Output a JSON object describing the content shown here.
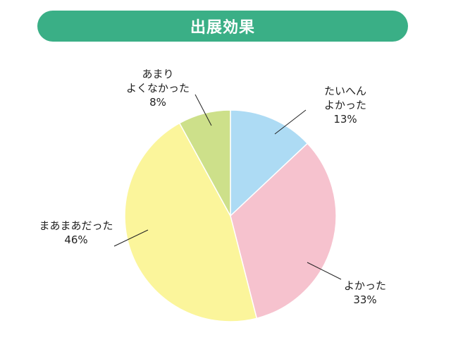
{
  "title": "出展効果",
  "colors": {
    "title_bg": "#3aaf86",
    "leader": "#222222"
  },
  "chart_data": {
    "type": "pie",
    "title": "出展効果",
    "slices": [
      {
        "label_lines": [
          "たいへん",
          "よかった"
        ],
        "percent_label": "13%",
        "value": 13,
        "color": "#addbf4"
      },
      {
        "label_lines": [
          "よかった"
        ],
        "percent_label": "33%",
        "value": 33,
        "color": "#f6c2ce"
      },
      {
        "label_lines": [
          "まあまあだった"
        ],
        "percent_label": "46%",
        "value": 46,
        "color": "#fbf59b"
      },
      {
        "label_lines": [
          "あまり",
          "よくなかった"
        ],
        "percent_label": "8%",
        "value": 8,
        "color": "#cde08a"
      }
    ],
    "start": "top",
    "direction": "clockwise",
    "stroke": "#ffffff"
  }
}
